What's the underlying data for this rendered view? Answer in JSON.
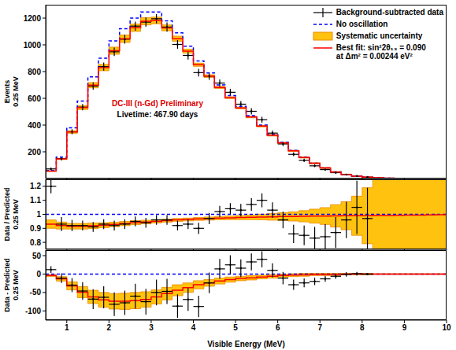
{
  "chart_data": [
    {
      "type": "histogram",
      "ylabel": "Events",
      "ylabel_unit": "0.25 MeV",
      "tick_labels": "y",
      "legend": "upper right",
      "annotations": [
        "DC-III (n-Gd) Preliminary",
        "Livetime: 467.90 days"
      ],
      "xlim": [
        0.5,
        10
      ],
      "xticks": [
        1,
        2,
        3,
        4,
        5,
        6,
        7,
        8,
        9,
        10
      ],
      "ylim": [
        0,
        1300
      ],
      "yticks": [
        200,
        400,
        600,
        800,
        1000,
        1200
      ],
      "bins": [
        0.5,
        0.75,
        1,
        1.25,
        1.5,
        1.75,
        2,
        2.25,
        2.5,
        2.75,
        3,
        3.25,
        3.5,
        3.75,
        4,
        4.25,
        4.5,
        4.75,
        5,
        5.25,
        5.5,
        5.75,
        6,
        6.25,
        6.5,
        6.75,
        7,
        7.25,
        7.5,
        7.75,
        8,
        8.25,
        8.5,
        8.75,
        9,
        9.25,
        9.5,
        9.75,
        10
      ],
      "series": [
        {
          "name": "Background-subtracted data",
          "type": "scatter",
          "marker": "cross",
          "color": "#000000",
          "values": [
            72,
            149,
            350,
            534,
            692,
            837,
            948,
            1042,
            1140,
            1170,
            1195,
            1133,
            1003,
            921,
            792,
            766,
            714,
            645,
            556,
            503,
            440,
            340,
            259,
            181,
            136,
            95,
            67,
            44,
            29,
            19,
            10,
            null,
            null,
            null,
            null,
            null,
            null,
            null
          ],
          "errors": [
            9,
            13,
            19,
            24,
            27,
            30,
            32,
            33,
            34,
            35,
            35,
            34,
            32,
            31,
            29,
            28,
            27,
            26,
            24,
            23,
            22,
            19,
            17,
            14,
            12,
            10,
            8,
            7,
            6,
            5,
            3,
            null,
            null,
            null,
            null,
            null,
            null,
            null
          ]
        },
        {
          "name": "No oscillation",
          "type": "step",
          "line_style": "dashed",
          "color": "#0000ff",
          "values": [
            60,
            160,
            380,
            580,
            760,
            900,
            1030,
            1120,
            1200,
            1245,
            1245,
            1180,
            1090,
            990,
            880,
            790,
            700,
            620,
            540,
            470,
            400,
            330,
            270,
            210,
            160,
            115,
            80,
            50,
            30,
            18,
            10,
            6,
            3,
            2,
            1,
            1,
            0.5,
            0.5
          ]
        },
        {
          "name": "Systematic uncertainty",
          "type": "band",
          "color": "#ffc20e",
          "values": [
            56,
            147,
            348,
            531,
            698,
            830,
            956,
            1046,
            1128,
            1176,
            1183,
            1127,
            1046,
            953,
            851,
            766,
            681,
            605,
            528,
            460,
            392,
            324,
            266,
            207,
            158,
            114,
            79,
            49,
            30,
            18,
            10,
            6,
            3,
            2,
            1,
            1,
            0.5,
            0.5
          ],
          "errors": [
            3,
            5,
            10,
            15,
            20,
            24,
            27,
            28,
            28,
            27,
            25,
            22,
            19,
            15,
            12,
            10,
            8,
            7,
            6,
            6,
            6,
            6,
            6,
            5,
            5,
            4,
            4,
            3,
            3,
            2,
            2,
            1,
            1,
            1,
            1,
            1,
            1,
            1
          ]
        },
        {
          "name": "Best fit: sin²2θ₁₃ = 0.090",
          "subname": "at Δm² = 0.00244 eV²",
          "type": "step",
          "line_style": "solid",
          "color": "#ff0000",
          "values": [
            56,
            147,
            348,
            531,
            698,
            830,
            956,
            1046,
            1128,
            1176,
            1183,
            1127,
            1046,
            953,
            851,
            766,
            681,
            605,
            528,
            460,
            392,
            324,
            266,
            207,
            158,
            114,
            79,
            49,
            30,
            18,
            10,
            6,
            3,
            2,
            1,
            1,
            0.5,
            0.5
          ]
        }
      ]
    },
    {
      "type": "histogram",
      "ylabel": "Data / Predicted",
      "ylabel_unit": "0.25 MeV",
      "tick_labels": "y",
      "xlim": [
        0.5,
        10
      ],
      "xticks": [
        1,
        2,
        3,
        4,
        5,
        6,
        7,
        8,
        9,
        10
      ],
      "ylim": [
        0.75,
        1.25
      ],
      "yticks": [
        0.8,
        0.9,
        1,
        1.1,
        1.2
      ],
      "bins": [
        0.5,
        0.75,
        1,
        1.25,
        1.5,
        1.75,
        2,
        2.25,
        2.5,
        2.75,
        3,
        3.25,
        3.5,
        3.75,
        4,
        4.25,
        4.5,
        4.75,
        5,
        5.25,
        5.5,
        5.75,
        6,
        6.25,
        6.5,
        6.75,
        7,
        7.25,
        7.5,
        7.75,
        8,
        8.25,
        8.5,
        8.75,
        9,
        9.25,
        9.5,
        9.75,
        10
      ],
      "series": [
        {
          "type": "band",
          "color": "#ffc20e",
          "values": [
            0.93,
            0.92,
            0.915,
            0.915,
            0.918,
            0.922,
            0.928,
            0.934,
            0.94,
            0.945,
            0.95,
            0.955,
            0.96,
            0.963,
            0.967,
            0.97,
            0.973,
            0.975,
            0.977,
            0.979,
            0.981,
            0.982,
            0.984,
            0.985,
            0.986,
            0.987,
            0.988,
            0.989,
            0.99,
            0.99,
            0.99,
            0.991,
            0.992,
            0.993,
            0.994,
            0.995,
            0.996,
            0.997
          ],
          "errors": [
            0.03,
            0.025,
            0.02,
            0.02,
            0.02,
            0.018,
            0.016,
            0.015,
            0.014,
            0.013,
            0.012,
            0.011,
            0.01,
            0.01,
            0.01,
            0.011,
            0.012,
            0.013,
            0.015,
            0.017,
            0.02,
            0.024,
            0.028,
            0.033,
            0.04,
            0.05,
            0.06,
            0.08,
            0.1,
            0.14,
            0.2,
            0.3,
            0.4,
            0.5,
            0.5,
            0.5,
            0.5,
            0.5
          ]
        },
        {
          "type": "step",
          "line_style": "dashed",
          "color": "#0000ff",
          "values": [
            1,
            1,
            1,
            1,
            1,
            1,
            1,
            1,
            1,
            1,
            1,
            1,
            1,
            1,
            1,
            1,
            1,
            1,
            1,
            1,
            1,
            1,
            1,
            1,
            1,
            1,
            1,
            1,
            1,
            1,
            1,
            1,
            1,
            1,
            1,
            1,
            1,
            1
          ]
        },
        {
          "type": "step",
          "line_style": "solid",
          "color": "#ff0000",
          "values": [
            0.93,
            0.92,
            0.915,
            0.915,
            0.918,
            0.922,
            0.928,
            0.934,
            0.94,
            0.945,
            0.95,
            0.955,
            0.96,
            0.963,
            0.967,
            0.97,
            0.973,
            0.975,
            0.977,
            0.979,
            0.981,
            0.982,
            0.984,
            0.985,
            0.986,
            0.987,
            0.988,
            0.989,
            0.99,
            0.99,
            0.99,
            0.991,
            0.992,
            0.993,
            0.994,
            0.995,
            0.996,
            0.997
          ]
        },
        {
          "type": "scatter",
          "marker": "cross",
          "color": "#000000",
          "values": [
            1.2,
            0.93,
            0.92,
            0.92,
            0.91,
            0.93,
            0.92,
            0.93,
            0.95,
            0.94,
            0.96,
            0.96,
            0.92,
            0.93,
            0.9,
            0.97,
            1.02,
            1.04,
            1.03,
            1.07,
            1.1,
            1.03,
            0.96,
            0.86,
            0.85,
            0.83,
            0.84,
            0.87,
            0.96,
            1.05,
            0.97,
            null,
            null,
            null,
            null,
            null,
            null,
            null
          ],
          "errors": [
            0.05,
            0.05,
            0.04,
            0.035,
            0.035,
            0.035,
            0.035,
            0.035,
            0.035,
            0.035,
            0.035,
            0.035,
            0.035,
            0.035,
            0.04,
            0.04,
            0.04,
            0.04,
            0.045,
            0.045,
            0.05,
            0.055,
            0.06,
            0.065,
            0.07,
            0.08,
            0.09,
            0.11,
            0.13,
            0.19,
            0.22,
            null,
            null,
            null,
            null,
            null,
            null,
            null
          ]
        }
      ]
    },
    {
      "type": "histogram",
      "ylabel": "Data - Predicted",
      "ylabel_unit": "0.25 MeV",
      "xlabel": "Visible Energy (MeV)",
      "xlim": [
        0.5,
        10
      ],
      "xticks": [
        1,
        2,
        3,
        4,
        5,
        6,
        7,
        8,
        9,
        10
      ],
      "ylim": [
        -125,
        65
      ],
      "yticks": [
        -100,
        -50,
        0,
        50
      ],
      "bins": [
        0.5,
        0.75,
        1,
        1.25,
        1.5,
        1.75,
        2,
        2.25,
        2.5,
        2.75,
        3,
        3.25,
        3.5,
        3.75,
        4,
        4.25,
        4.5,
        4.75,
        5,
        5.25,
        5.5,
        5.75,
        6,
        6.25,
        6.5,
        6.75,
        7,
        7.25,
        7.5,
        7.75,
        8,
        8.25,
        8.5,
        8.75,
        9,
        9.25,
        9.5,
        9.75,
        10
      ],
      "series": [
        {
          "type": "band",
          "color": "#ffc20e",
          "values": [
            -4,
            -13,
            -32,
            -49,
            -62,
            -70,
            -74,
            -74,
            -72,
            -69,
            -62,
            -53,
            -44,
            -37,
            -29,
            -24,
            -19,
            -15,
            -12,
            -10,
            -8,
            -6,
            -4,
            -3,
            -2,
            -1,
            -1,
            -1,
            0,
            0,
            0,
            0,
            0,
            0,
            0,
            0,
            0,
            0
          ],
          "errors": [
            3,
            6,
            11,
            15,
            18,
            20,
            21,
            22,
            22,
            21,
            19,
            17,
            15,
            13,
            11,
            9,
            8,
            7,
            6,
            6,
            5,
            5,
            4,
            4,
            4,
            3,
            3,
            3,
            2,
            2,
            2,
            1,
            1,
            1,
            1,
            1,
            1,
            1
          ]
        },
        {
          "type": "step",
          "line_style": "dashed",
          "color": "#0000ff",
          "values": [
            0,
            0,
            0,
            0,
            0,
            0,
            0,
            0,
            0,
            0,
            0,
            0,
            0,
            0,
            0,
            0,
            0,
            0,
            0,
            0,
            0,
            0,
            0,
            0,
            0,
            0,
            0,
            0,
            0,
            0,
            0,
            0,
            0,
            0,
            0,
            0,
            0,
            0
          ]
        },
        {
          "type": "step",
          "line_style": "solid",
          "color": "#ff0000",
          "values": [
            -4,
            -13,
            -32,
            -49,
            -62,
            -70,
            -74,
            -74,
            -72,
            -69,
            -62,
            -53,
            -44,
            -37,
            -29,
            -24,
            -19,
            -15,
            -12,
            -10,
            -8,
            -6,
            -4,
            -3,
            -2,
            -1,
            -1,
            -1,
            0,
            0,
            0,
            0,
            0,
            0,
            0,
            0,
            0,
            0
          ]
        },
        {
          "type": "scatter",
          "marker": "cross",
          "color": "#000000",
          "values": [
            12,
            -11,
            -30,
            -46,
            -68,
            -63,
            -82,
            -78,
            -60,
            -75,
            -50,
            -47,
            -87,
            -69,
            -88,
            -24,
            14,
            25,
            16,
            33,
            40,
            10,
            -11,
            -29,
            -24,
            -20,
            -13,
            -6,
            -1,
            1,
            0,
            null,
            null,
            null,
            null,
            null,
            null,
            null
          ],
          "errors": [
            9,
            13,
            19,
            24,
            27,
            30,
            32,
            33,
            34,
            35,
            35,
            34,
            32,
            31,
            29,
            28,
            27,
            26,
            24,
            23,
            22,
            19,
            17,
            14,
            12,
            10,
            8,
            7,
            6,
            5,
            3,
            null,
            null,
            null,
            null,
            null,
            null,
            null
          ]
        }
      ]
    }
  ]
}
